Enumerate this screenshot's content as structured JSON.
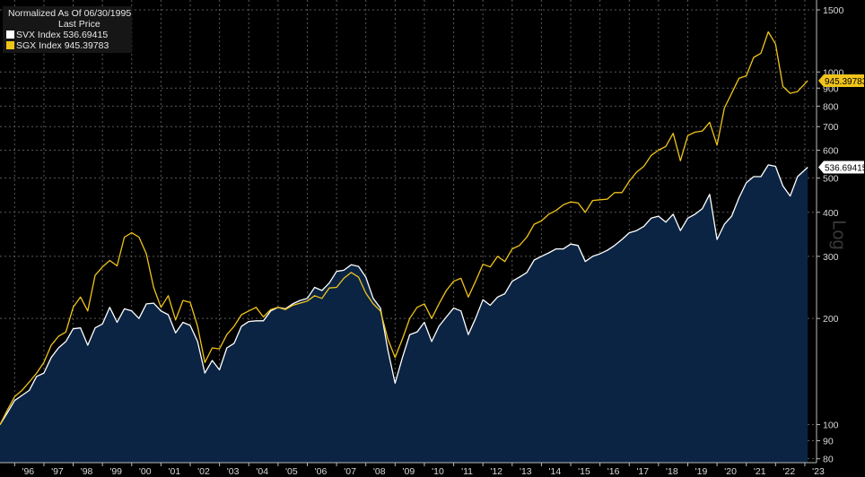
{
  "legend": {
    "title": "Normalized As Of 06/30/1995",
    "subtitle": "Last Price",
    "entries": [
      {
        "label": "SVX Index  536.69415",
        "color": "#ffffff"
      },
      {
        "label": "SGX Index  945.39783",
        "color": "#f0c419"
      }
    ]
  },
  "scale_label": "Log",
  "colors": {
    "background": "#000000",
    "area_fill": "#0b2443",
    "svx": "#ffffff",
    "sgx": "#f0c419",
    "grid": "#555555",
    "axis_text": "#d8d8d8"
  },
  "chart_data": {
    "type": "line",
    "scale": "log",
    "ylim": [
      78,
      1600
    ],
    "yticks": [
      80,
      90,
      100,
      200,
      300,
      400,
      500,
      600,
      700,
      800,
      900,
      1000,
      1500
    ],
    "xlim": [
      1995.5,
      2023.4
    ],
    "xticks": [
      {
        "x": 1996,
        "label": "'96"
      },
      {
        "x": 1997,
        "label": "'97"
      },
      {
        "x": 1998,
        "label": "'98"
      },
      {
        "x": 1999,
        "label": "'99"
      },
      {
        "x": 2000,
        "label": "'00"
      },
      {
        "x": 2001,
        "label": "'01"
      },
      {
        "x": 2002,
        "label": "'02"
      },
      {
        "x": 2003,
        "label": "'03"
      },
      {
        "x": 2004,
        "label": "'04"
      },
      {
        "x": 2005,
        "label": "'05"
      },
      {
        "x": 2006,
        "label": "'06"
      },
      {
        "x": 2007,
        "label": "'07"
      },
      {
        "x": 2008,
        "label": "'08"
      },
      {
        "x": 2009,
        "label": "'09"
      },
      {
        "x": 2010,
        "label": "'10"
      },
      {
        "x": 2011,
        "label": "'11"
      },
      {
        "x": 2012,
        "label": "'12"
      },
      {
        "x": 2013,
        "label": "'13"
      },
      {
        "x": 2014,
        "label": "'14"
      },
      {
        "x": 2015,
        "label": "'15"
      },
      {
        "x": 2016,
        "label": "'16"
      },
      {
        "x": 2017,
        "label": "'17"
      },
      {
        "x": 2018,
        "label": "'18"
      },
      {
        "x": 2019,
        "label": "'19"
      },
      {
        "x": 2020,
        "label": "'20"
      },
      {
        "x": 2021,
        "label": "'21"
      },
      {
        "x": 2022,
        "label": "'22"
      },
      {
        "x": 2023,
        "label": "'23"
      }
    ],
    "grid": true,
    "series": [
      {
        "name": "SVX Index",
        "last_label": "536.69415",
        "color": "#ffffff",
        "fill": "#0b2443",
        "points": [
          [
            1995.5,
            100
          ],
          [
            1995.75,
            108
          ],
          [
            1996.0,
            117
          ],
          [
            1996.25,
            121
          ],
          [
            1996.5,
            125
          ],
          [
            1996.75,
            137
          ],
          [
            1997.0,
            140
          ],
          [
            1997.25,
            155
          ],
          [
            1997.5,
            165
          ],
          [
            1997.75,
            172
          ],
          [
            1998.0,
            187
          ],
          [
            1998.25,
            188
          ],
          [
            1998.5,
            168
          ],
          [
            1998.75,
            188
          ],
          [
            1999.0,
            193
          ],
          [
            1999.25,
            215
          ],
          [
            1999.5,
            195
          ],
          [
            1999.75,
            213
          ],
          [
            2000.0,
            210
          ],
          [
            2000.25,
            200
          ],
          [
            2000.5,
            220
          ],
          [
            2000.75,
            221
          ],
          [
            2001.0,
            210
          ],
          [
            2001.25,
            205
          ],
          [
            2001.5,
            182
          ],
          [
            2001.75,
            195
          ],
          [
            2002.0,
            191
          ],
          [
            2002.25,
            172
          ],
          [
            2002.5,
            140
          ],
          [
            2002.75,
            152
          ],
          [
            2003.0,
            143
          ],
          [
            2003.25,
            165
          ],
          [
            2003.5,
            170
          ],
          [
            2003.75,
            190
          ],
          [
            2004.0,
            196
          ],
          [
            2004.25,
            197
          ],
          [
            2004.5,
            197
          ],
          [
            2004.75,
            210
          ],
          [
            2005.0,
            215
          ],
          [
            2005.25,
            213
          ],
          [
            2005.5,
            220
          ],
          [
            2005.75,
            225
          ],
          [
            2006.0,
            228
          ],
          [
            2006.25,
            245
          ],
          [
            2006.5,
            240
          ],
          [
            2006.75,
            252
          ],
          [
            2007.0,
            272
          ],
          [
            2007.25,
            274
          ],
          [
            2007.5,
            284
          ],
          [
            2007.75,
            281
          ],
          [
            2008.0,
            262
          ],
          [
            2008.25,
            228
          ],
          [
            2008.5,
            214
          ],
          [
            2008.75,
            163
          ],
          [
            2009.0,
            131
          ],
          [
            2009.25,
            155
          ],
          [
            2009.5,
            180
          ],
          [
            2009.75,
            183
          ],
          [
            2010.0,
            195
          ],
          [
            2010.25,
            172
          ],
          [
            2010.5,
            190
          ],
          [
            2010.75,
            202
          ],
          [
            2011.0,
            214
          ],
          [
            2011.25,
            210
          ],
          [
            2011.5,
            180
          ],
          [
            2011.75,
            200
          ],
          [
            2012.0,
            226
          ],
          [
            2012.25,
            218
          ],
          [
            2012.5,
            230
          ],
          [
            2012.75,
            235
          ],
          [
            2013.0,
            255
          ],
          [
            2013.25,
            262
          ],
          [
            2013.5,
            270
          ],
          [
            2013.75,
            293
          ],
          [
            2014.0,
            300
          ],
          [
            2014.25,
            307
          ],
          [
            2014.5,
            315
          ],
          [
            2014.75,
            315
          ],
          [
            2015.0,
            325
          ],
          [
            2015.25,
            322
          ],
          [
            2015.5,
            290
          ],
          [
            2015.75,
            300
          ],
          [
            2016.0,
            305
          ],
          [
            2016.25,
            312
          ],
          [
            2016.5,
            322
          ],
          [
            2016.75,
            335
          ],
          [
            2017.0,
            350
          ],
          [
            2017.25,
            355
          ],
          [
            2017.5,
            365
          ],
          [
            2017.75,
            385
          ],
          [
            2018.0,
            390
          ],
          [
            2018.25,
            375
          ],
          [
            2018.5,
            395
          ],
          [
            2018.75,
            355
          ],
          [
            2019.0,
            385
          ],
          [
            2019.25,
            395
          ],
          [
            2019.5,
            410
          ],
          [
            2019.75,
            450
          ],
          [
            2020.0,
            335
          ],
          [
            2020.25,
            370
          ],
          [
            2020.5,
            390
          ],
          [
            2020.75,
            440
          ],
          [
            2021.0,
            485
          ],
          [
            2021.25,
            505
          ],
          [
            2021.5,
            505
          ],
          [
            2021.75,
            545
          ],
          [
            2022.0,
            540
          ],
          [
            2022.25,
            475
          ],
          [
            2022.5,
            445
          ],
          [
            2022.75,
            505
          ],
          [
            2023.1,
            537
          ]
        ]
      },
      {
        "name": "SGX Index",
        "last_label": "945.39783",
        "color": "#f0c419",
        "points": [
          [
            1995.5,
            100
          ],
          [
            1995.75,
            110
          ],
          [
            1996.0,
            120
          ],
          [
            1996.25,
            125
          ],
          [
            1996.5,
            132
          ],
          [
            1996.75,
            140
          ],
          [
            1997.0,
            150
          ],
          [
            1997.25,
            168
          ],
          [
            1997.5,
            178
          ],
          [
            1997.75,
            183
          ],
          [
            1998.0,
            215
          ],
          [
            1998.25,
            230
          ],
          [
            1998.5,
            210
          ],
          [
            1998.75,
            265
          ],
          [
            1999.0,
            280
          ],
          [
            1999.25,
            292
          ],
          [
            1999.5,
            282
          ],
          [
            1999.75,
            340
          ],
          [
            2000.0,
            350
          ],
          [
            2000.25,
            340
          ],
          [
            2000.5,
            305
          ],
          [
            2000.75,
            245
          ],
          [
            2001.0,
            215
          ],
          [
            2001.25,
            232
          ],
          [
            2001.5,
            198
          ],
          [
            2001.75,
            225
          ],
          [
            2002.0,
            222
          ],
          [
            2002.25,
            190
          ],
          [
            2002.5,
            150
          ],
          [
            2002.75,
            165
          ],
          [
            2003.0,
            164
          ],
          [
            2003.25,
            180
          ],
          [
            2003.5,
            190
          ],
          [
            2003.75,
            205
          ],
          [
            2004.0,
            210
          ],
          [
            2004.25,
            215
          ],
          [
            2004.5,
            202
          ],
          [
            2004.75,
            212
          ],
          [
            2005.0,
            215
          ],
          [
            2005.25,
            212
          ],
          [
            2005.5,
            218
          ],
          [
            2005.75,
            221
          ],
          [
            2006.0,
            224
          ],
          [
            2006.25,
            232
          ],
          [
            2006.5,
            228
          ],
          [
            2006.75,
            244
          ],
          [
            2007.0,
            245
          ],
          [
            2007.25,
            260
          ],
          [
            2007.5,
            270
          ],
          [
            2007.75,
            262
          ],
          [
            2008.0,
            236
          ],
          [
            2008.25,
            220
          ],
          [
            2008.5,
            210
          ],
          [
            2008.75,
            175
          ],
          [
            2009.0,
            155
          ],
          [
            2009.25,
            175
          ],
          [
            2009.5,
            200
          ],
          [
            2009.75,
            215
          ],
          [
            2010.0,
            220
          ],
          [
            2010.25,
            200
          ],
          [
            2010.5,
            220
          ],
          [
            2010.75,
            240
          ],
          [
            2011.0,
            255
          ],
          [
            2011.25,
            260
          ],
          [
            2011.5,
            230
          ],
          [
            2011.75,
            255
          ],
          [
            2012.0,
            285
          ],
          [
            2012.25,
            280
          ],
          [
            2012.5,
            300
          ],
          [
            2012.75,
            290
          ],
          [
            2013.0,
            315
          ],
          [
            2013.25,
            322
          ],
          [
            2013.5,
            340
          ],
          [
            2013.75,
            370
          ],
          [
            2014.0,
            378
          ],
          [
            2014.25,
            395
          ],
          [
            2014.5,
            405
          ],
          [
            2014.75,
            420
          ],
          [
            2015.0,
            428
          ],
          [
            2015.25,
            425
          ],
          [
            2015.5,
            400
          ],
          [
            2015.75,
            432
          ],
          [
            2016.0,
            434
          ],
          [
            2016.25,
            436
          ],
          [
            2016.5,
            455
          ],
          [
            2016.75,
            455
          ],
          [
            2017.0,
            490
          ],
          [
            2017.25,
            520
          ],
          [
            2017.5,
            540
          ],
          [
            2017.75,
            580
          ],
          [
            2018.0,
            600
          ],
          [
            2018.25,
            615
          ],
          [
            2018.5,
            670
          ],
          [
            2018.75,
            560
          ],
          [
            2019.0,
            660
          ],
          [
            2019.25,
            675
          ],
          [
            2019.5,
            680
          ],
          [
            2019.75,
            720
          ],
          [
            2020.0,
            620
          ],
          [
            2020.25,
            790
          ],
          [
            2020.5,
            870
          ],
          [
            2020.75,
            960
          ],
          [
            2021.0,
            975
          ],
          [
            2021.25,
            1100
          ],
          [
            2021.5,
            1130
          ],
          [
            2021.75,
            1300
          ],
          [
            2022.0,
            1200
          ],
          [
            2022.25,
            910
          ],
          [
            2022.5,
            870
          ],
          [
            2022.75,
            880
          ],
          [
            2023.1,
            945
          ]
        ]
      }
    ]
  }
}
